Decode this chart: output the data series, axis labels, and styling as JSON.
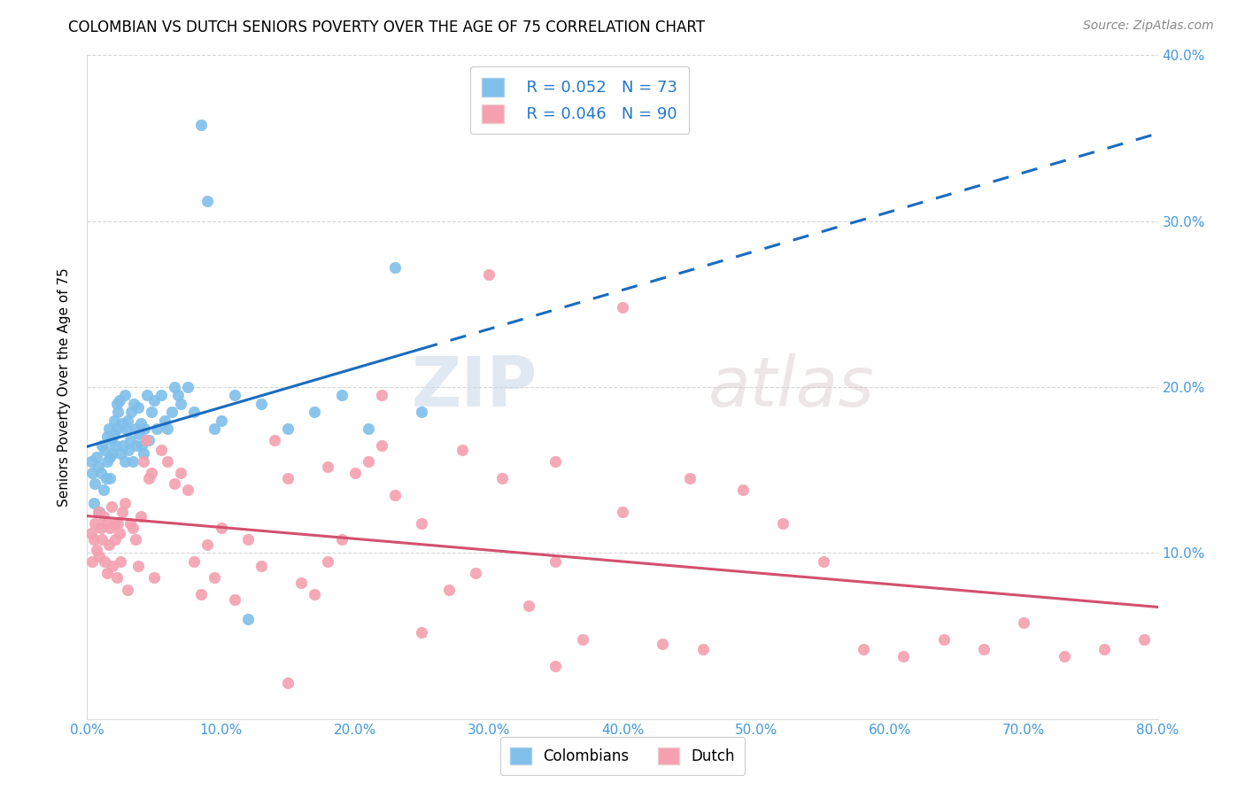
{
  "title": "COLOMBIAN VS DUTCH SENIORS POVERTY OVER THE AGE OF 75 CORRELATION CHART",
  "source": "Source: ZipAtlas.com",
  "ylabel": "Seniors Poverty Over the Age of 75",
  "xlim": [
    0.0,
    0.8
  ],
  "ylim": [
    0.0,
    0.4
  ],
  "xticks": [
    0.0,
    0.1,
    0.2,
    0.3,
    0.4,
    0.5,
    0.6,
    0.7,
    0.8
  ],
  "yticks": [
    0.0,
    0.1,
    0.2,
    0.3,
    0.4
  ],
  "xtick_labels": [
    "0.0%",
    "10.0%",
    "20.0%",
    "30.0%",
    "40.0%",
    "50.0%",
    "60.0%",
    "70.0%",
    "80.0%"
  ],
  "ytick_labels": [
    "",
    "10.0%",
    "20.0%",
    "30.0%",
    "40.0%"
  ],
  "color_colombian": "#7fbfea",
  "color_dutch": "#f4a0b0",
  "color_reg_colombian": "#1a6bbf",
  "color_reg_dutch": "#d45070",
  "legend_r1": "R = 0.052",
  "legend_n1": "N = 73",
  "legend_r2": "R = 0.046",
  "legend_n2": "N = 90",
  "watermark": "ZIPatlas",
  "tick_color": "#4499dd",
  "colombian_x": [
    0.003,
    0.004,
    0.005,
    0.006,
    0.007,
    0.008,
    0.009,
    0.01,
    0.011,
    0.012,
    0.013,
    0.014,
    0.015,
    0.015,
    0.016,
    0.017,
    0.017,
    0.018,
    0.019,
    0.02,
    0.02,
    0.021,
    0.022,
    0.022,
    0.023,
    0.024,
    0.025,
    0.026,
    0.027,
    0.028,
    0.028,
    0.029,
    0.03,
    0.031,
    0.032,
    0.033,
    0.034,
    0.035,
    0.036,
    0.037,
    0.038,
    0.039,
    0.04,
    0.041,
    0.042,
    0.043,
    0.045,
    0.046,
    0.048,
    0.05,
    0.052,
    0.055,
    0.058,
    0.06,
    0.063,
    0.065,
    0.068,
    0.07,
    0.075,
    0.08,
    0.085,
    0.09,
    0.095,
    0.1,
    0.11,
    0.12,
    0.13,
    0.15,
    0.17,
    0.19,
    0.21,
    0.23,
    0.25
  ],
  "colombian_y": [
    0.155,
    0.148,
    0.13,
    0.142,
    0.158,
    0.152,
    0.125,
    0.148,
    0.165,
    0.138,
    0.162,
    0.145,
    0.17,
    0.155,
    0.175,
    0.145,
    0.158,
    0.168,
    0.16,
    0.172,
    0.18,
    0.165,
    0.19,
    0.175,
    0.185,
    0.192,
    0.16,
    0.178,
    0.165,
    0.195,
    0.155,
    0.175,
    0.18,
    0.162,
    0.168,
    0.185,
    0.155,
    0.19,
    0.175,
    0.165,
    0.188,
    0.172,
    0.178,
    0.165,
    0.16,
    0.175,
    0.195,
    0.168,
    0.185,
    0.192,
    0.175,
    0.195,
    0.18,
    0.175,
    0.185,
    0.2,
    0.195,
    0.19,
    0.2,
    0.185,
    0.358,
    0.312,
    0.175,
    0.18,
    0.195,
    0.06,
    0.19,
    0.175,
    0.185,
    0.195,
    0.175,
    0.272,
    0.185
  ],
  "dutch_x": [
    0.003,
    0.004,
    0.005,
    0.006,
    0.007,
    0.008,
    0.009,
    0.01,
    0.011,
    0.012,
    0.013,
    0.014,
    0.015,
    0.016,
    0.017,
    0.018,
    0.019,
    0.02,
    0.021,
    0.022,
    0.023,
    0.024,
    0.025,
    0.026,
    0.028,
    0.03,
    0.032,
    0.034,
    0.036,
    0.038,
    0.04,
    0.042,
    0.044,
    0.046,
    0.048,
    0.05,
    0.055,
    0.06,
    0.065,
    0.07,
    0.075,
    0.08,
    0.085,
    0.09,
    0.095,
    0.1,
    0.11,
    0.12,
    0.13,
    0.14,
    0.15,
    0.16,
    0.17,
    0.18,
    0.19,
    0.2,
    0.21,
    0.22,
    0.23,
    0.25,
    0.27,
    0.29,
    0.31,
    0.33,
    0.35,
    0.37,
    0.4,
    0.43,
    0.46,
    0.49,
    0.52,
    0.55,
    0.58,
    0.61,
    0.64,
    0.67,
    0.7,
    0.73,
    0.76,
    0.79,
    0.15,
    0.25,
    0.35,
    0.45,
    0.3,
    0.22,
    0.18,
    0.4,
    0.35,
    0.28
  ],
  "dutch_y": [
    0.112,
    0.095,
    0.108,
    0.118,
    0.102,
    0.125,
    0.098,
    0.115,
    0.108,
    0.122,
    0.095,
    0.118,
    0.088,
    0.105,
    0.115,
    0.128,
    0.092,
    0.118,
    0.108,
    0.085,
    0.118,
    0.112,
    0.095,
    0.125,
    0.13,
    0.078,
    0.118,
    0.115,
    0.108,
    0.092,
    0.122,
    0.155,
    0.168,
    0.145,
    0.148,
    0.085,
    0.162,
    0.155,
    0.142,
    0.148,
    0.138,
    0.095,
    0.075,
    0.105,
    0.085,
    0.115,
    0.072,
    0.108,
    0.092,
    0.168,
    0.145,
    0.082,
    0.075,
    0.095,
    0.108,
    0.148,
    0.155,
    0.165,
    0.135,
    0.118,
    0.078,
    0.088,
    0.145,
    0.068,
    0.095,
    0.048,
    0.125,
    0.045,
    0.042,
    0.138,
    0.118,
    0.095,
    0.042,
    0.038,
    0.048,
    0.042,
    0.058,
    0.038,
    0.042,
    0.048,
    0.022,
    0.052,
    0.032,
    0.145,
    0.268,
    0.195,
    0.152,
    0.248,
    0.155,
    0.162
  ]
}
